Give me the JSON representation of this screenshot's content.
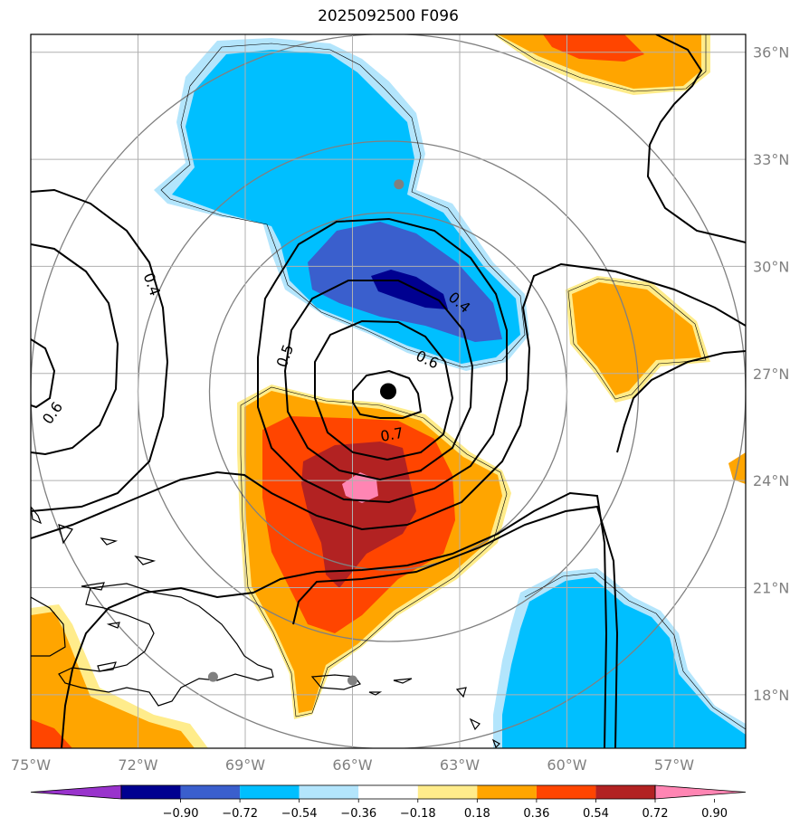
{
  "title": "2025092500 F096",
  "map": {
    "lon_range": [
      -75,
      -55
    ],
    "lat_range": [
      16.5,
      36.5
    ],
    "lon_ticks": [
      {
        "value": -75,
        "label": "75°W"
      },
      {
        "value": -72,
        "label": "72°W"
      },
      {
        "value": -69,
        "label": "69°W"
      },
      {
        "value": -66,
        "label": "66°W"
      },
      {
        "value": -63,
        "label": "63°W"
      },
      {
        "value": -60,
        "label": "60°W"
      },
      {
        "value": -57,
        "label": "57°W"
      }
    ],
    "lat_ticks": [
      {
        "value": 36,
        "label": "36°N"
      },
      {
        "value": 33,
        "label": "33°N"
      },
      {
        "value": 30,
        "label": "30°N"
      },
      {
        "value": 27,
        "label": "27°N"
      },
      {
        "value": 24,
        "label": "24°N"
      },
      {
        "value": 21,
        "label": "21°N"
      },
      {
        "value": 18,
        "label": "18°N"
      }
    ],
    "storm_center": {
      "lon": -65.0,
      "lat": 26.5
    },
    "stations": [
      {
        "lon": -64.7,
        "lat": 32.3
      },
      {
        "lon": -69.9,
        "lat": 18.5
      },
      {
        "lon": -66.0,
        "lat": 18.4
      }
    ],
    "contour_labels": [
      {
        "text": "0.4",
        "lon": -71.6,
        "lat": 29.5,
        "rot": 70
      },
      {
        "text": "0.6",
        "lon": -74.4,
        "lat": 25.9,
        "rot": -55
      },
      {
        "text": "0.5",
        "lon": -67.9,
        "lat": 27.5,
        "rot": -70
      },
      {
        "text": "0.4",
        "lon": -63.0,
        "lat": 29.0,
        "rot": 40
      },
      {
        "text": "0.6",
        "lon": -63.9,
        "lat": 27.4,
        "rot": 25
      },
      {
        "text": "0.7",
        "lon": -64.9,
        "lat": 25.3,
        "rot": -10
      }
    ],
    "range_rings_deg": [
      5,
      7,
      10
    ]
  },
  "colorbar": {
    "ticks": [
      "−0.90",
      "−0.72",
      "−0.54",
      "−0.36",
      "−0.18",
      "0.18",
      "0.36",
      "0.54",
      "0.72",
      "0.90"
    ],
    "colors": [
      "#9933cc",
      "#000090",
      "#3a5fcd",
      "#00bfff",
      "#b3e5fc",
      "#ffffff",
      "#ffec8b",
      "#ffa500",
      "#ff4500",
      "#b22222",
      "#ff85b3"
    ]
  }
}
